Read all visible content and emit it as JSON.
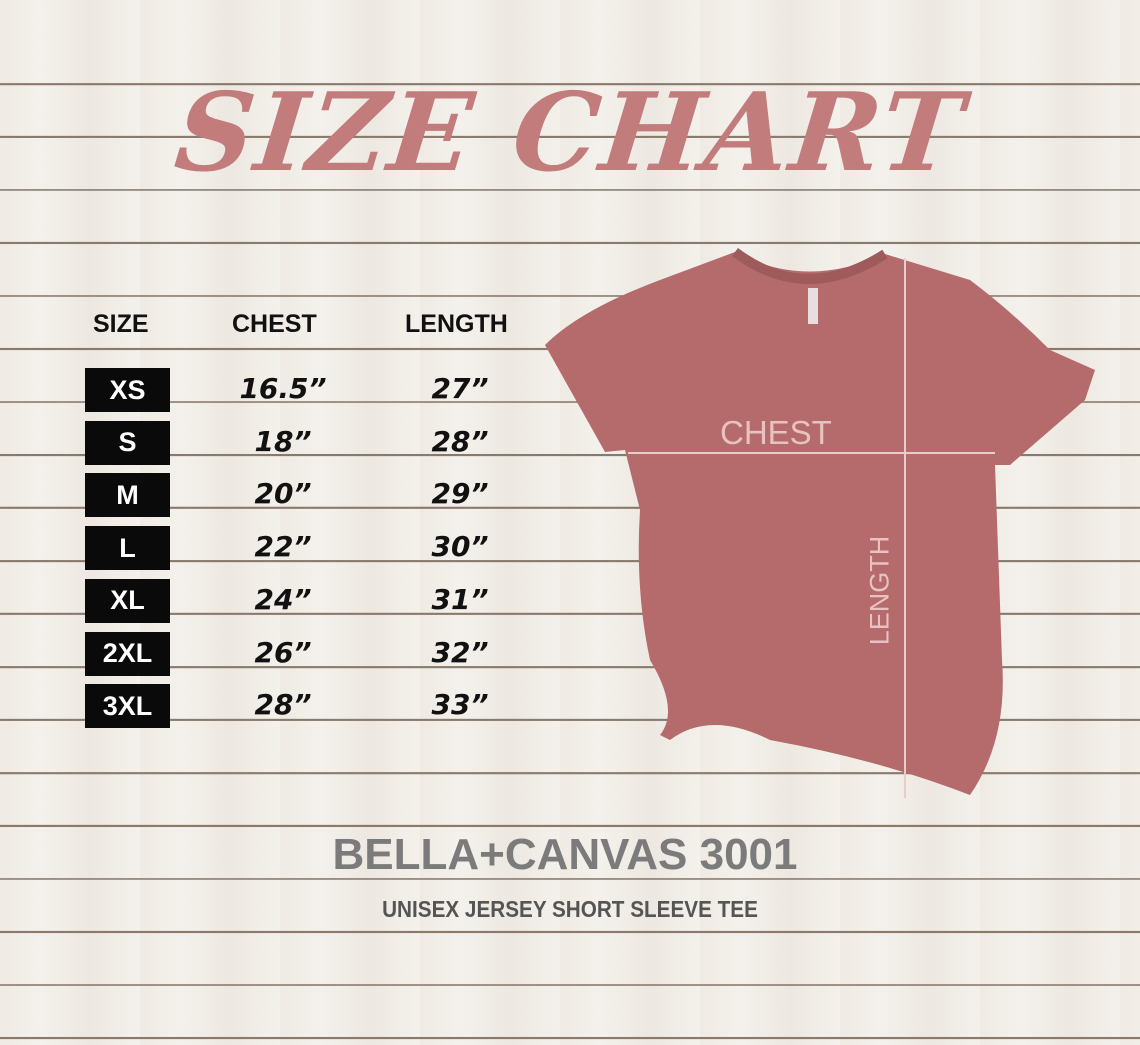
{
  "title": "SIZE CHART",
  "headers": {
    "size": "SIZE",
    "chest": "CHEST",
    "length": "LENGTH"
  },
  "rows": [
    {
      "size": "XS",
      "chest": "16.5”",
      "length": "27”"
    },
    {
      "size": "S",
      "chest": "18”",
      "length": "28”"
    },
    {
      "size": "M",
      "chest": "20”",
      "length": "29”"
    },
    {
      "size": "L",
      "chest": "22”",
      "length": "30”"
    },
    {
      "size": "XL",
      "chest": "24”",
      "length": "31”"
    },
    {
      "size": "2XL",
      "chest": "26”",
      "length": "32”"
    },
    {
      "size": "3XL",
      "chest": "28”",
      "length": "33”"
    }
  ],
  "diagram": {
    "chest_label": "CHEST",
    "length_label": "LENGTH"
  },
  "brand": "BELLA+CANVAS 3001",
  "subtitle": "UNISEX JERSEY SHORT SLEEVE TEE",
  "colors": {
    "title": "#c27c7b",
    "shirt": "#b56b6b",
    "size_box": "#0a0a0a",
    "brand": "#7b7b7b"
  }
}
